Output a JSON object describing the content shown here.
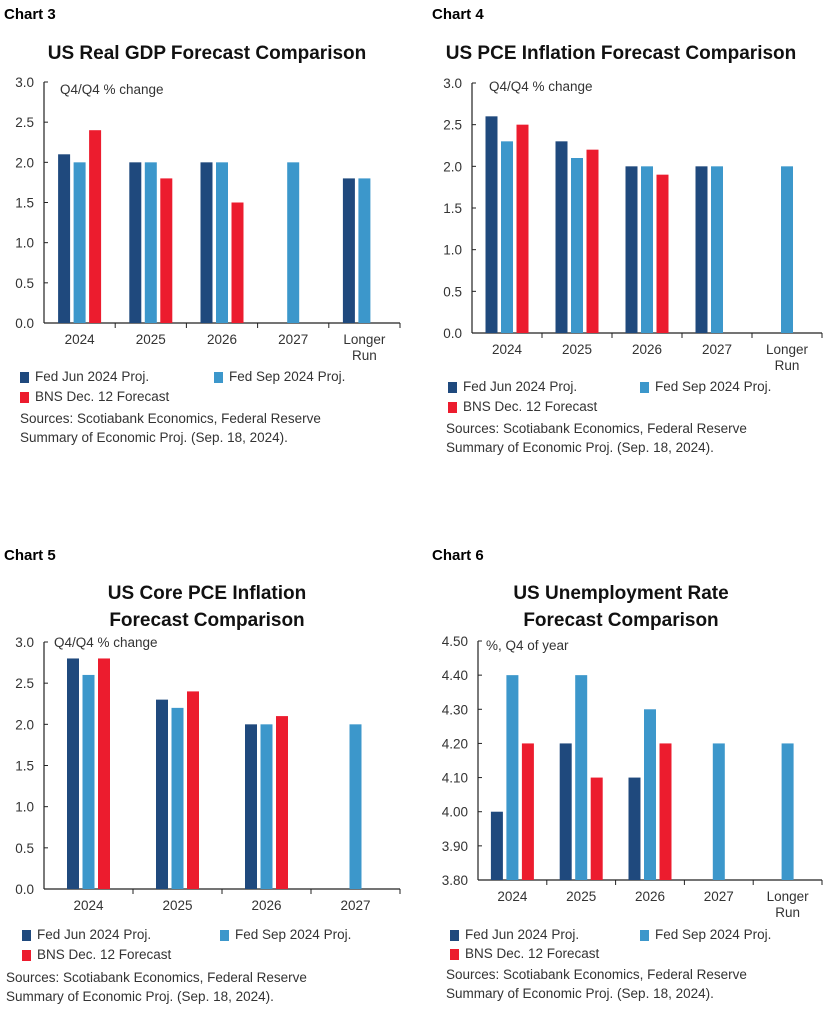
{
  "colors": {
    "fed_jun": "#1f497d",
    "fed_sep": "#3c97cb",
    "bns": "#ec1c2e"
  },
  "chart_data": [
    {
      "type": "bar",
      "label": "Chart 3",
      "title": "US Real GDP Forecast Comparison",
      "title_lines": [
        "US Real GDP Forecast Comparison"
      ],
      "unit_note": "Q4/Q4 % change",
      "categories": [
        "2024",
        "2025",
        "2026",
        "2027",
        "Longer Run"
      ],
      "ylim": [
        0,
        3.0
      ],
      "yticks": [
        "0.0",
        "0.5",
        "1.0",
        "1.5",
        "2.0",
        "2.5",
        "3.0"
      ],
      "series": [
        {
          "name": "Fed Jun 2024 Proj.",
          "values": [
            2.1,
            2.0,
            2.0,
            null,
            1.8
          ]
        },
        {
          "name": "Fed Sep 2024 Proj.",
          "values": [
            2.0,
            2.0,
            2.0,
            2.0,
            1.8
          ]
        },
        {
          "name": "BNS Dec. 12 Forecast",
          "values": [
            2.4,
            1.8,
            1.5,
            null,
            null
          ]
        }
      ],
      "sources": [
        "Sources: Scotiabank Economics, Federal Reserve",
        "Summary of Economic Proj. (Sep. 18, 2024)."
      ]
    },
    {
      "type": "bar",
      "label": "Chart 4",
      "title": "US PCE Inflation Forecast Comparison",
      "title_lines": [
        "US PCE Inflation Forecast Comparison"
      ],
      "unit_note": "Q4/Q4 % change",
      "categories": [
        "2024",
        "2025",
        "2026",
        "2027",
        "Longer Run"
      ],
      "ylim": [
        0,
        3.0
      ],
      "yticks": [
        "0.0",
        "0.5",
        "1.0",
        "1.5",
        "2.0",
        "2.5",
        "3.0"
      ],
      "series": [
        {
          "name": "Fed Jun 2024 Proj.",
          "values": [
            2.6,
            2.3,
            2.0,
            2.0,
            null
          ]
        },
        {
          "name": "Fed Sep 2024 Proj.",
          "values": [
            2.3,
            2.1,
            2.0,
            2.0,
            2.0
          ]
        },
        {
          "name": "BNS Dec. 12 Forecast",
          "values": [
            2.5,
            2.2,
            1.9,
            null,
            null
          ]
        }
      ],
      "sources": [
        "Sources: Scotiabank Economics, Federal Reserve",
        "Summary of Economic Proj. (Sep. 18, 2024)."
      ]
    },
    {
      "type": "bar",
      "label": "Chart 5",
      "title": "US Core PCE Inflation Forecast Comparison",
      "title_lines": [
        "US Core PCE Inflation",
        "Forecast Comparison"
      ],
      "unit_note": "Q4/Q4 % change",
      "categories": [
        "2024",
        "2025",
        "2026",
        "2027"
      ],
      "ylim": [
        0,
        3.0
      ],
      "yticks": [
        "0.0",
        "0.5",
        "1.0",
        "1.5",
        "2.0",
        "2.5",
        "3.0"
      ],
      "series": [
        {
          "name": "Fed Jun 2024 Proj.",
          "values": [
            2.8,
            2.3,
            2.0,
            null
          ]
        },
        {
          "name": "Fed Sep 2024 Proj.",
          "values": [
            2.6,
            2.2,
            2.0,
            2.0
          ]
        },
        {
          "name": "BNS Dec. 12 Forecast",
          "values": [
            2.8,
            2.4,
            2.1,
            null
          ]
        }
      ],
      "sources": [
        "Sources: Scotiabank Economics, Federal Reserve",
        "Summary of Economic Proj. (Sep. 18, 2024)."
      ]
    },
    {
      "type": "bar",
      "label": "Chart 6",
      "title": "US Unemployment Rate Forecast Comparison",
      "title_lines": [
        "US Unemployment Rate",
        "Forecast Comparison"
      ],
      "unit_note": "%, Q4 of year",
      "categories": [
        "2024",
        "2025",
        "2026",
        "2027",
        "Longer Run"
      ],
      "ylim": [
        3.8,
        4.5
      ],
      "yticks": [
        "3.80",
        "3.90",
        "4.00",
        "4.10",
        "4.20",
        "4.30",
        "4.40",
        "4.50"
      ],
      "series": [
        {
          "name": "Fed Jun 2024 Proj.",
          "values": [
            4.0,
            4.2,
            4.1,
            null,
            null
          ]
        },
        {
          "name": "Fed Sep 2024 Proj.",
          "values": [
            4.4,
            4.4,
            4.3,
            4.2,
            4.2
          ]
        },
        {
          "name": "BNS Dec. 12 Forecast",
          "values": [
            4.2,
            4.1,
            4.2,
            null,
            null
          ]
        }
      ],
      "sources": [
        "Sources: Scotiabank Economics, Federal Reserve",
        "Summary of Economic Proj. (Sep. 18, 2024)."
      ]
    }
  ]
}
